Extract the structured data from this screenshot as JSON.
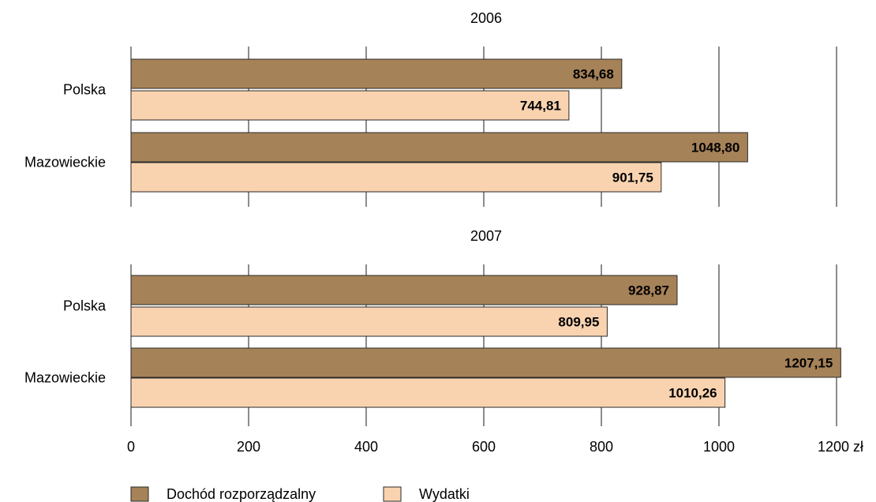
{
  "chart_data": {
    "type": "bar",
    "orientation": "horizontal",
    "unit_label": "zł",
    "xlim": [
      0,
      1200
    ],
    "x_ticks": [
      0,
      200,
      400,
      600,
      800,
      1000,
      1200
    ],
    "x_tick_labels": [
      "0",
      "200",
      "400",
      "600",
      "800",
      "1000",
      "1200 zł"
    ],
    "grid": true,
    "legend_position": "bottom-left",
    "series": [
      {
        "name": "Dochód rozporządzalny",
        "color": "#a68258"
      },
      {
        "name": "Wydatki",
        "color": "#f9d3b0"
      }
    ],
    "panels": [
      {
        "title": "2006",
        "categories": [
          "Polska",
          "Mazowieckie"
        ],
        "values": {
          "Dochód rozporządzalny": [
            834.68,
            1048.8
          ],
          "Wydatki": [
            744.81,
            901.75
          ]
        },
        "value_labels": {
          "Dochód rozporządzalny": [
            "834,68",
            "1048,80"
          ],
          "Wydatki": [
            "744,81",
            "901,75"
          ]
        }
      },
      {
        "title": "2007",
        "categories": [
          "Polska",
          "Mazowieckie"
        ],
        "values": {
          "Dochód rozporządzalny": [
            928.87,
            1207.15
          ],
          "Wydatki": [
            809.95,
            1010.26
          ]
        },
        "value_labels": {
          "Dochód rozporządzalny": [
            "928,87",
            "1207,15"
          ],
          "Wydatki": [
            "809,95",
            "1010,26"
          ]
        }
      }
    ]
  }
}
